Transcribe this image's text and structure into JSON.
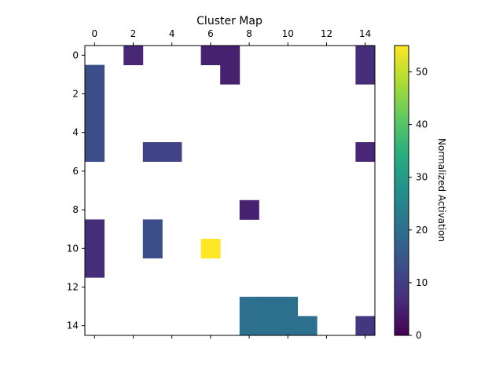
{
  "chart_data": {
    "type": "heatmap",
    "title": "Cluster Map",
    "xlabel": "",
    "ylabel": "",
    "x_ticks": [
      "0",
      "2",
      "4",
      "6",
      "8",
      "10",
      "12",
      "14"
    ],
    "y_ticks": [
      "0",
      "2",
      "4",
      "6",
      "8",
      "10",
      "12",
      "14"
    ],
    "xlim": [
      -0.5,
      14.5
    ],
    "ylim": [
      14.5,
      -0.5
    ],
    "x_axis_position": "top",
    "grid": false,
    "colormap": "viridis",
    "colorbar": {
      "label": "Normalized Activation",
      "ticks": [
        "0",
        "10",
        "20",
        "30",
        "40",
        "50"
      ],
      "range": [
        0,
        55
      ]
    },
    "empty_color": "#ffffff",
    "cells": [
      {
        "row": 0,
        "col": 2,
        "value": 6
      },
      {
        "row": 0,
        "col": 6,
        "value": 5
      },
      {
        "row": 0,
        "col": 7,
        "value": 5
      },
      {
        "row": 0,
        "col": 14,
        "value": 7
      },
      {
        "row": 1,
        "col": 0,
        "value": 13
      },
      {
        "row": 1,
        "col": 7,
        "value": 5
      },
      {
        "row": 1,
        "col": 14,
        "value": 7
      },
      {
        "row": 2,
        "col": 0,
        "value": 13
      },
      {
        "row": 3,
        "col": 0,
        "value": 13
      },
      {
        "row": 4,
        "col": 0,
        "value": 13
      },
      {
        "row": 5,
        "col": 0,
        "value": 13
      },
      {
        "row": 5,
        "col": 3,
        "value": 11
      },
      {
        "row": 5,
        "col": 4,
        "value": 11
      },
      {
        "row": 5,
        "col": 14,
        "value": 6
      },
      {
        "row": 8,
        "col": 8,
        "value": 5
      },
      {
        "row": 9,
        "col": 0,
        "value": 7
      },
      {
        "row": 9,
        "col": 3,
        "value": 13
      },
      {
        "row": 10,
        "col": 0,
        "value": 7
      },
      {
        "row": 10,
        "col": 3,
        "value": 13
      },
      {
        "row": 10,
        "col": 6,
        "value": 55
      },
      {
        "row": 11,
        "col": 0,
        "value": 7
      },
      {
        "row": 13,
        "col": 8,
        "value": 20
      },
      {
        "row": 13,
        "col": 9,
        "value": 20
      },
      {
        "row": 13,
        "col": 10,
        "value": 20
      },
      {
        "row": 14,
        "col": 8,
        "value": 20
      },
      {
        "row": 14,
        "col": 9,
        "value": 20
      },
      {
        "row": 14,
        "col": 10,
        "value": 20
      },
      {
        "row": 14,
        "col": 11,
        "value": 20
      },
      {
        "row": 14,
        "col": 14,
        "value": 9
      }
    ]
  }
}
